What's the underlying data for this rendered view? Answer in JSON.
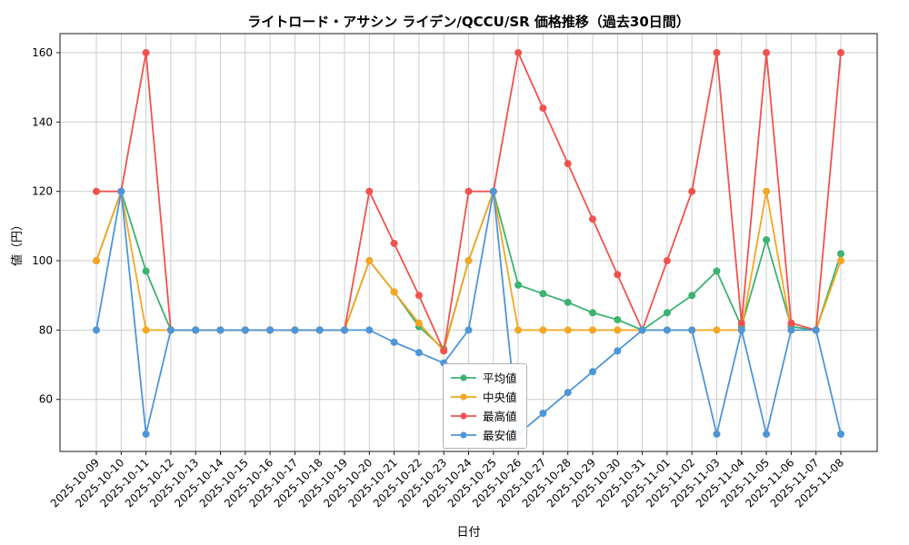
{
  "chart_data": {
    "type": "line",
    "title": "ライトロード・アサシン ライデン/QCCU/SR 価格推移（過去30日間）",
    "xlabel": "日付",
    "ylabel": "値（円）",
    "grid": true,
    "legend_position": "lower center inside plot",
    "ylim": [
      45,
      165.5
    ],
    "yticks": [
      60,
      80,
      100,
      120,
      140,
      160
    ],
    "categories": [
      "2025-10-09",
      "2025-10-10",
      "2025-10-11",
      "2025-10-12",
      "2025-10-13",
      "2025-10-14",
      "2025-10-15",
      "2025-10-16",
      "2025-10-17",
      "2025-10-18",
      "2025-10-19",
      "2025-10-20",
      "2025-10-21",
      "2025-10-22",
      "2025-10-23",
      "2025-10-24",
      "2025-10-25",
      "2025-10-26",
      "2025-10-27",
      "2025-10-28",
      "2025-10-29",
      "2025-10-30",
      "2025-10-31",
      "2025-11-01",
      "2025-11-02",
      "2025-11-03",
      "2025-11-04",
      "2025-11-05",
      "2025-11-06",
      "2025-11-07",
      "2025-11-08"
    ],
    "series": [
      {
        "id": "average",
        "name": "平均値",
        "color": "#3cb371",
        "values": [
          100,
          120,
          97,
          80,
          80,
          80,
          80,
          80,
          80,
          80,
          80,
          100,
          91,
          81,
          74.5,
          100,
          120,
          93,
          90.5,
          88,
          85,
          83,
          80,
          85,
          90,
          97,
          81,
          106,
          81,
          80,
          102
        ]
      },
      {
        "id": "median",
        "name": "中央値",
        "color": "#f5a623",
        "values": [
          100,
          120,
          80,
          80,
          80,
          80,
          80,
          80,
          80,
          80,
          80,
          100,
          91,
          82,
          74,
          100,
          120,
          80,
          80,
          80,
          80,
          80,
          80,
          80,
          80,
          80,
          80,
          120,
          80,
          80,
          100
        ]
      },
      {
        "id": "max",
        "name": "最高値",
        "color": "#ef5350",
        "values": [
          120,
          120,
          160,
          80,
          80,
          80,
          80,
          80,
          80,
          80,
          80,
          120,
          105,
          90,
          74,
          120,
          120,
          160,
          144,
          128,
          112,
          96,
          80,
          100,
          120,
          160,
          82,
          160,
          82,
          80,
          160
        ]
      },
      {
        "id": "min",
        "name": "最安値",
        "color": "#4d96d8",
        "values": [
          80,
          120,
          50,
          80,
          80,
          80,
          80,
          80,
          80,
          80,
          80,
          80,
          76.5,
          73.5,
          70.5,
          80,
          120,
          50,
          56,
          62,
          68,
          74,
          80,
          80,
          80,
          50,
          80,
          50,
          80,
          80,
          50
        ]
      }
    ]
  }
}
